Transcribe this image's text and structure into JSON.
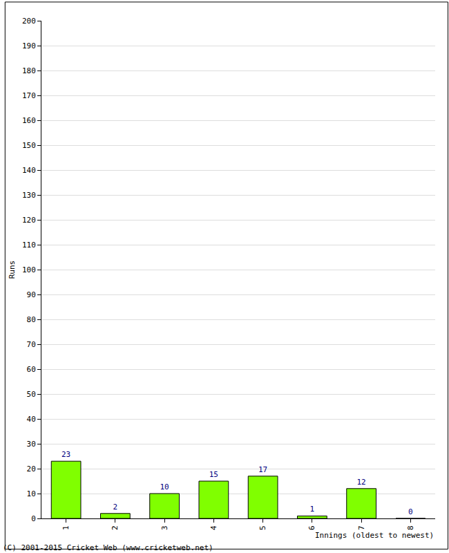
{
  "chart_data": {
    "type": "bar",
    "x_label": "Innings (oldest to newest)",
    "y_label": "Runs",
    "categories": [
      "1",
      "2",
      "3",
      "4",
      "5",
      "6",
      "7",
      "8"
    ],
    "values": [
      23,
      2,
      10,
      15,
      17,
      1,
      12,
      0
    ],
    "color": "#80ff00",
    "ylim": [
      0,
      200
    ],
    "yticks": [
      0,
      10,
      20,
      30,
      40,
      50,
      60,
      70,
      80,
      90,
      100,
      110,
      120,
      130,
      140,
      150,
      160,
      170,
      180,
      190,
      200
    ],
    "grid": true,
    "data_labels": true,
    "annotations": [
      "(C) 2001-2015 Cricket Web (www.cricketweb.net)"
    ]
  }
}
